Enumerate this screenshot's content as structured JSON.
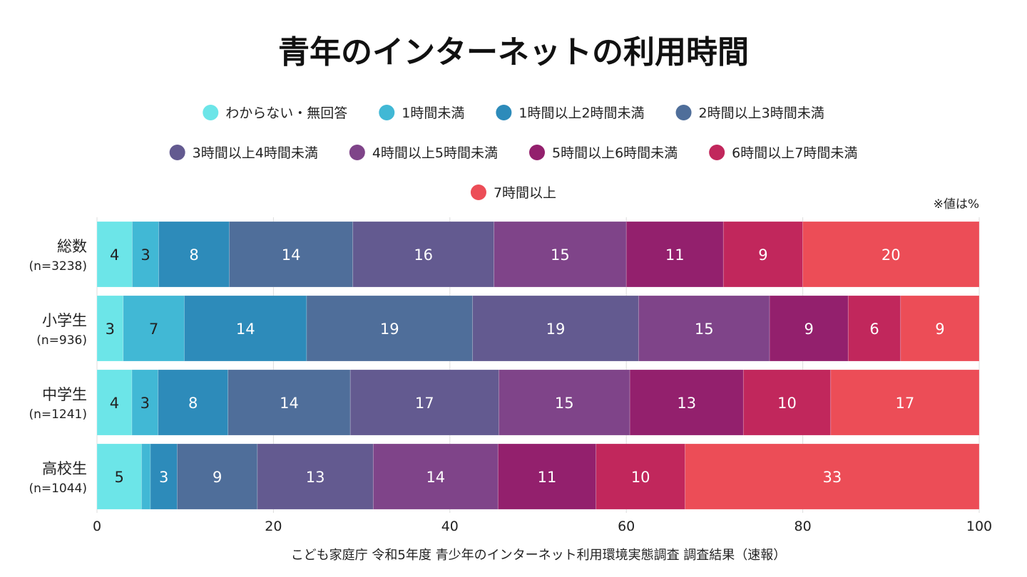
{
  "chart_data": {
    "type": "bar",
    "orientation": "horizontal",
    "stacked": true,
    "title": "青年のインターネットの利用時間",
    "note": "※値は%",
    "source": "こども家庭庁 令和5年度 青少年のインターネット利用環境実態調査 調査結果（速報）",
    "categories": [
      {
        "name": "総数",
        "n": "(n=3238)"
      },
      {
        "name": "小学生",
        "n": "(n=936)"
      },
      {
        "name": "中学生",
        "n": "(n=1241)"
      },
      {
        "name": "高校生",
        "n": "(n=1044)"
      }
    ],
    "series": [
      {
        "name": "わからない・無回答",
        "color": "#6ce5e8",
        "label_color": "#222222",
        "values": [
          4,
          3,
          4,
          5
        ]
      },
      {
        "name": "1時間未満",
        "color": "#41b8d5",
        "label_color": "#222222",
        "values": [
          3,
          7,
          3,
          1
        ]
      },
      {
        "name": "1時間以上2時間未満",
        "color": "#2d8bba",
        "label_color": "#ffffff",
        "values": [
          8,
          14,
          8,
          3
        ]
      },
      {
        "name": "2時間以上3時間未満",
        "color": "#4f6e9a",
        "label_color": "#ffffff",
        "values": [
          14,
          19,
          14,
          9
        ]
      },
      {
        "name": "3時間以上4時間未満",
        "color": "#635a90",
        "label_color": "#ffffff",
        "values": [
          16,
          19,
          17,
          13
        ]
      },
      {
        "name": "4時間以上5時間未満",
        "color": "#7f4489",
        "label_color": "#ffffff",
        "values": [
          15,
          15,
          15,
          14
        ]
      },
      {
        "name": "5時間以上6時間未満",
        "color": "#93206d",
        "label_color": "#ffffff",
        "values": [
          11,
          9,
          13,
          11
        ]
      },
      {
        "name": "6時間以上7時間未満",
        "color": "#c1275c",
        "label_color": "#ffffff",
        "values": [
          9,
          6,
          10,
          10
        ]
      },
      {
        "name": "7時間以上",
        "color": "#ec4d57",
        "label_color": "#ffffff",
        "values": [
          20,
          9,
          17,
          33
        ]
      }
    ],
    "xlim": [
      0,
      100
    ],
    "xticks": [
      0,
      20,
      40,
      60,
      80,
      100
    ],
    "grid": true,
    "legend_placement": "top"
  }
}
